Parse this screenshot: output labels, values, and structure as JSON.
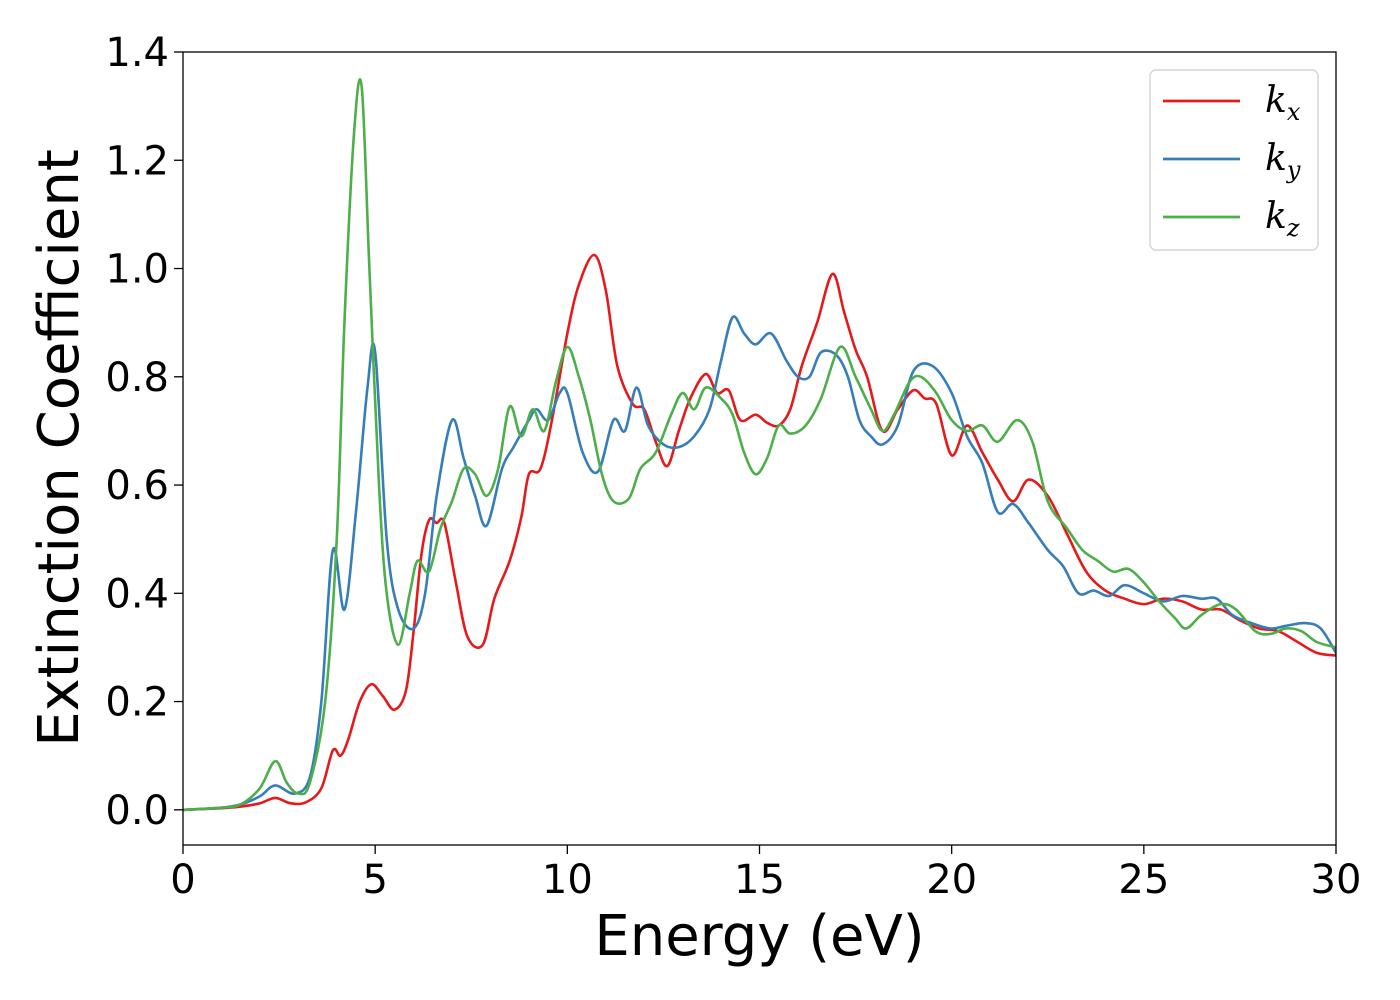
{
  "chart_data": {
    "type": "line",
    "xlabel": "Energy (eV)",
    "ylabel": "Extinction Coefficient",
    "xlim": [
      0,
      30
    ],
    "ylim": [
      -0.065,
      1.4
    ],
    "xticks": [
      "0",
      "5",
      "10",
      "15",
      "20",
      "25",
      "30"
    ],
    "yticks": [
      "0.0",
      "0.2",
      "0.4",
      "0.6",
      "0.8",
      "1.0",
      "1.2",
      "1.4"
    ],
    "grid": false,
    "legend_position": "top-right",
    "series": [
      {
        "name": "k",
        "subscript": "x",
        "color": "#e41a1c",
        "points": [
          [
            0,
            0
          ],
          [
            1,
            0.003
          ],
          [
            1.5,
            0.006
          ],
          [
            2,
            0.012
          ],
          [
            2.4,
            0.022
          ],
          [
            2.8,
            0.012
          ],
          [
            3.2,
            0.014
          ],
          [
            3.6,
            0.04
          ],
          [
            3.9,
            0.11
          ],
          [
            4.1,
            0.1
          ],
          [
            4.3,
            0.13
          ],
          [
            4.6,
            0.2
          ],
          [
            4.9,
            0.232
          ],
          [
            5.2,
            0.21
          ],
          [
            5.5,
            0.185
          ],
          [
            5.8,
            0.22
          ],
          [
            6.0,
            0.33
          ],
          [
            6.2,
            0.47
          ],
          [
            6.4,
            0.535
          ],
          [
            6.6,
            0.53
          ],
          [
            6.8,
            0.53
          ],
          [
            7.1,
            0.42
          ],
          [
            7.4,
            0.32
          ],
          [
            7.8,
            0.305
          ],
          [
            8.1,
            0.39
          ],
          [
            8.5,
            0.46
          ],
          [
            8.8,
            0.54
          ],
          [
            9.0,
            0.62
          ],
          [
            9.3,
            0.63
          ],
          [
            9.6,
            0.72
          ],
          [
            10.0,
            0.88
          ],
          [
            10.3,
            0.97
          ],
          [
            10.7,
            1.025
          ],
          [
            11.0,
            0.96
          ],
          [
            11.3,
            0.82
          ],
          [
            11.7,
            0.75
          ],
          [
            12.0,
            0.74
          ],
          [
            12.3,
            0.68
          ],
          [
            12.6,
            0.635
          ],
          [
            12.9,
            0.7
          ],
          [
            13.2,
            0.76
          ],
          [
            13.6,
            0.805
          ],
          [
            13.9,
            0.77
          ],
          [
            14.2,
            0.775
          ],
          [
            14.5,
            0.72
          ],
          [
            14.9,
            0.73
          ],
          [
            15.2,
            0.715
          ],
          [
            15.5,
            0.71
          ],
          [
            15.8,
            0.74
          ],
          [
            16.1,
            0.82
          ],
          [
            16.5,
            0.9
          ],
          [
            16.9,
            0.99
          ],
          [
            17.2,
            0.92
          ],
          [
            17.5,
            0.85
          ],
          [
            17.8,
            0.8
          ],
          [
            18.2,
            0.7
          ],
          [
            18.6,
            0.74
          ],
          [
            19.0,
            0.775
          ],
          [
            19.3,
            0.76
          ],
          [
            19.6,
            0.75
          ],
          [
            20.0,
            0.655
          ],
          [
            20.4,
            0.71
          ],
          [
            20.8,
            0.66
          ],
          [
            21.2,
            0.61
          ],
          [
            21.6,
            0.57
          ],
          [
            22.0,
            0.61
          ],
          [
            22.5,
            0.58
          ],
          [
            23.0,
            0.51
          ],
          [
            23.5,
            0.44
          ],
          [
            24.0,
            0.405
          ],
          [
            24.5,
            0.39
          ],
          [
            25.0,
            0.38
          ],
          [
            25.5,
            0.39
          ],
          [
            26.0,
            0.385
          ],
          [
            26.5,
            0.37
          ],
          [
            27.0,
            0.37
          ],
          [
            27.5,
            0.35
          ],
          [
            28.0,
            0.335
          ],
          [
            28.5,
            0.33
          ],
          [
            29.0,
            0.31
          ],
          [
            29.5,
            0.29
          ],
          [
            30.0,
            0.285
          ]
        ]
      },
      {
        "name": "k",
        "subscript": "y",
        "color": "#377eb8",
        "points": [
          [
            0,
            0
          ],
          [
            1,
            0.004
          ],
          [
            1.5,
            0.01
          ],
          [
            2,
            0.025
          ],
          [
            2.4,
            0.045
          ],
          [
            2.9,
            0.03
          ],
          [
            3.3,
            0.06
          ],
          [
            3.6,
            0.2
          ],
          [
            3.9,
            0.48
          ],
          [
            4.2,
            0.37
          ],
          [
            4.5,
            0.55
          ],
          [
            4.8,
            0.78
          ],
          [
            5.0,
            0.845
          ],
          [
            5.3,
            0.5
          ],
          [
            5.6,
            0.37
          ],
          [
            6.0,
            0.335
          ],
          [
            6.3,
            0.4
          ],
          [
            6.6,
            0.58
          ],
          [
            7.0,
            0.72
          ],
          [
            7.3,
            0.65
          ],
          [
            7.6,
            0.58
          ],
          [
            7.9,
            0.525
          ],
          [
            8.3,
            0.63
          ],
          [
            8.6,
            0.67
          ],
          [
            9.0,
            0.72
          ],
          [
            9.2,
            0.74
          ],
          [
            9.5,
            0.72
          ],
          [
            9.8,
            0.77
          ],
          [
            10.0,
            0.77
          ],
          [
            10.4,
            0.66
          ],
          [
            10.8,
            0.625
          ],
          [
            11.2,
            0.72
          ],
          [
            11.5,
            0.7
          ],
          [
            11.8,
            0.78
          ],
          [
            12.1,
            0.71
          ],
          [
            12.5,
            0.675
          ],
          [
            12.9,
            0.67
          ],
          [
            13.3,
            0.69
          ],
          [
            13.7,
            0.74
          ],
          [
            14.0,
            0.83
          ],
          [
            14.3,
            0.91
          ],
          [
            14.6,
            0.88
          ],
          [
            14.9,
            0.86
          ],
          [
            15.3,
            0.88
          ],
          [
            15.7,
            0.83
          ],
          [
            16.0,
            0.8
          ],
          [
            16.3,
            0.8
          ],
          [
            16.6,
            0.845
          ],
          [
            17.0,
            0.84
          ],
          [
            17.3,
            0.8
          ],
          [
            17.6,
            0.72
          ],
          [
            17.9,
            0.69
          ],
          [
            18.2,
            0.675
          ],
          [
            18.6,
            0.71
          ],
          [
            19.0,
            0.81
          ],
          [
            19.5,
            0.82
          ],
          [
            20.0,
            0.77
          ],
          [
            20.4,
            0.69
          ],
          [
            20.8,
            0.64
          ],
          [
            21.2,
            0.55
          ],
          [
            21.6,
            0.565
          ],
          [
            22.0,
            0.53
          ],
          [
            22.5,
            0.48
          ],
          [
            22.9,
            0.45
          ],
          [
            23.3,
            0.4
          ],
          [
            23.7,
            0.405
          ],
          [
            24.1,
            0.395
          ],
          [
            24.5,
            0.415
          ],
          [
            25.0,
            0.4
          ],
          [
            25.5,
            0.385
          ],
          [
            26.0,
            0.395
          ],
          [
            26.5,
            0.39
          ],
          [
            26.9,
            0.39
          ],
          [
            27.3,
            0.36
          ],
          [
            27.8,
            0.345
          ],
          [
            28.3,
            0.335
          ],
          [
            28.7,
            0.34
          ],
          [
            29.2,
            0.345
          ],
          [
            29.6,
            0.335
          ],
          [
            30.0,
            0.29
          ]
        ]
      },
      {
        "name": "k",
        "subscript": "z",
        "color": "#4daf4a",
        "points": [
          [
            0,
            0
          ],
          [
            1,
            0.004
          ],
          [
            1.5,
            0.01
          ],
          [
            2,
            0.04
          ],
          [
            2.4,
            0.09
          ],
          [
            2.7,
            0.05
          ],
          [
            3.0,
            0.03
          ],
          [
            3.3,
            0.05
          ],
          [
            3.7,
            0.2
          ],
          [
            4.0,
            0.5
          ],
          [
            4.2,
            0.9
          ],
          [
            4.45,
            1.25
          ],
          [
            4.65,
            1.335
          ],
          [
            4.85,
            1.0
          ],
          [
            5.1,
            0.6
          ],
          [
            5.3,
            0.4
          ],
          [
            5.6,
            0.305
          ],
          [
            5.9,
            0.4
          ],
          [
            6.1,
            0.46
          ],
          [
            6.4,
            0.44
          ],
          [
            6.7,
            0.52
          ],
          [
            7.0,
            0.57
          ],
          [
            7.3,
            0.63
          ],
          [
            7.6,
            0.62
          ],
          [
            7.9,
            0.58
          ],
          [
            8.2,
            0.63
          ],
          [
            8.5,
            0.745
          ],
          [
            8.8,
            0.69
          ],
          [
            9.1,
            0.74
          ],
          [
            9.4,
            0.7
          ],
          [
            9.7,
            0.79
          ],
          [
            10.0,
            0.855
          ],
          [
            10.3,
            0.8
          ],
          [
            10.6,
            0.72
          ],
          [
            10.9,
            0.62
          ],
          [
            11.2,
            0.57
          ],
          [
            11.6,
            0.575
          ],
          [
            11.9,
            0.63
          ],
          [
            12.3,
            0.66
          ],
          [
            12.7,
            0.73
          ],
          [
            13.0,
            0.77
          ],
          [
            13.3,
            0.74
          ],
          [
            13.6,
            0.78
          ],
          [
            14.0,
            0.76
          ],
          [
            14.3,
            0.73
          ],
          [
            14.6,
            0.66
          ],
          [
            14.9,
            0.62
          ],
          [
            15.2,
            0.65
          ],
          [
            15.5,
            0.71
          ],
          [
            15.8,
            0.695
          ],
          [
            16.2,
            0.71
          ],
          [
            16.6,
            0.76
          ],
          [
            17.1,
            0.855
          ],
          [
            17.5,
            0.8
          ],
          [
            17.9,
            0.74
          ],
          [
            18.2,
            0.7
          ],
          [
            18.5,
            0.73
          ],
          [
            18.9,
            0.79
          ],
          [
            19.2,
            0.8
          ],
          [
            19.6,
            0.77
          ],
          [
            20.0,
            0.72
          ],
          [
            20.4,
            0.7
          ],
          [
            20.8,
            0.71
          ],
          [
            21.2,
            0.68
          ],
          [
            21.7,
            0.72
          ],
          [
            22.1,
            0.68
          ],
          [
            22.5,
            0.57
          ],
          [
            23.0,
            0.52
          ],
          [
            23.4,
            0.48
          ],
          [
            23.8,
            0.46
          ],
          [
            24.2,
            0.44
          ],
          [
            24.6,
            0.445
          ],
          [
            25.0,
            0.42
          ],
          [
            25.4,
            0.385
          ],
          [
            25.8,
            0.355
          ],
          [
            26.1,
            0.335
          ],
          [
            26.5,
            0.36
          ],
          [
            27.0,
            0.38
          ],
          [
            27.4,
            0.37
          ],
          [
            27.9,
            0.33
          ],
          [
            28.3,
            0.325
          ],
          [
            28.7,
            0.335
          ],
          [
            29.1,
            0.33
          ],
          [
            29.5,
            0.31
          ],
          [
            30.0,
            0.3
          ]
        ]
      }
    ]
  }
}
